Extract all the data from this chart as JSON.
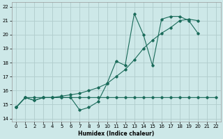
{
  "xlabel": "Humidex (Indice chaleur)",
  "xlim": [
    -0.5,
    22.5
  ],
  "ylim": [
    13.8,
    22.3
  ],
  "yticks": [
    14,
    15,
    16,
    17,
    18,
    19,
    20,
    21,
    22
  ],
  "xticks": [
    0,
    1,
    2,
    3,
    4,
    5,
    6,
    7,
    8,
    9,
    10,
    11,
    12,
    13,
    14,
    15,
    16,
    17,
    18,
    19,
    20,
    21,
    22
  ],
  "background_color": "#cde8e8",
  "grid_color": "#b0cccc",
  "line_color": "#1a6b5a",
  "flat_x": [
    0,
    1,
    2,
    3,
    4,
    5,
    6,
    7,
    8,
    9,
    10,
    11,
    12,
    13,
    14,
    15,
    16,
    17,
    18,
    19,
    20,
    21,
    22
  ],
  "flat_y": [
    14.8,
    15.5,
    15.5,
    15.5,
    15.5,
    15.5,
    15.5,
    15.5,
    15.5,
    15.5,
    15.5,
    15.5,
    15.5,
    15.5,
    15.5,
    15.5,
    15.5,
    15.5,
    15.5,
    15.5,
    15.5,
    15.5,
    15.5
  ],
  "diag_x": [
    0,
    1,
    2,
    3,
    4,
    5,
    6,
    7,
    8,
    9,
    10,
    11,
    12,
    13,
    14,
    15,
    16,
    17,
    18,
    19,
    20
  ],
  "diag_y": [
    14.8,
    15.5,
    15.3,
    15.5,
    15.5,
    15.6,
    15.7,
    15.8,
    16.0,
    16.2,
    16.5,
    17.0,
    17.5,
    18.2,
    19.0,
    19.6,
    20.1,
    20.5,
    21.0,
    21.1,
    21.0
  ],
  "zigzag_x": [
    0,
    1,
    2,
    3,
    4,
    5,
    6,
    7,
    8,
    9,
    10,
    11,
    12,
    13,
    14,
    15,
    16,
    17,
    18,
    19,
    20
  ],
  "zigzag_y": [
    14.8,
    15.5,
    15.3,
    15.5,
    15.5,
    15.5,
    15.5,
    14.6,
    14.8,
    15.2,
    16.5,
    18.1,
    17.8,
    21.5,
    20.0,
    17.8,
    21.1,
    21.3,
    21.3,
    21.0,
    20.1
  ]
}
